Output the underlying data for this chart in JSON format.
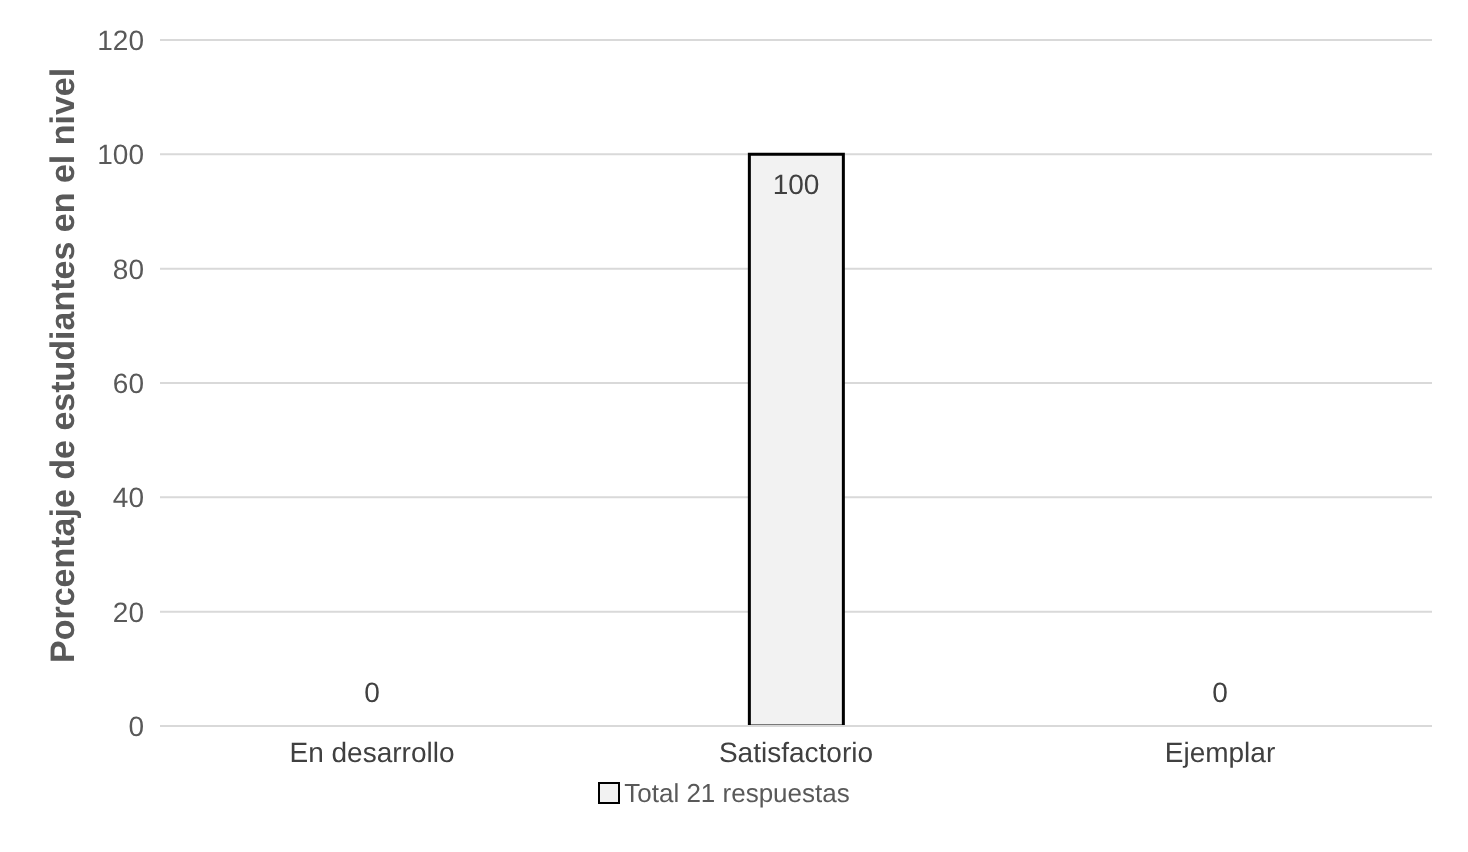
{
  "chart_data": {
    "type": "bar",
    "ylabel": "Porcentaje de estudiantes en el nivel",
    "categories": [
      "En desarrollo",
      "Satisfactorio",
      "Ejemplar"
    ],
    "series": [
      {
        "name": "Total 21 respuestas",
        "color": "#f2f2f2",
        "values": [
          0,
          100,
          0
        ]
      }
    ],
    "ylim": [
      0,
      120
    ],
    "yticks": [
      0,
      20,
      40,
      60,
      80,
      100,
      120
    ],
    "grid": "y",
    "legend": "bottom",
    "data_labels": true
  }
}
